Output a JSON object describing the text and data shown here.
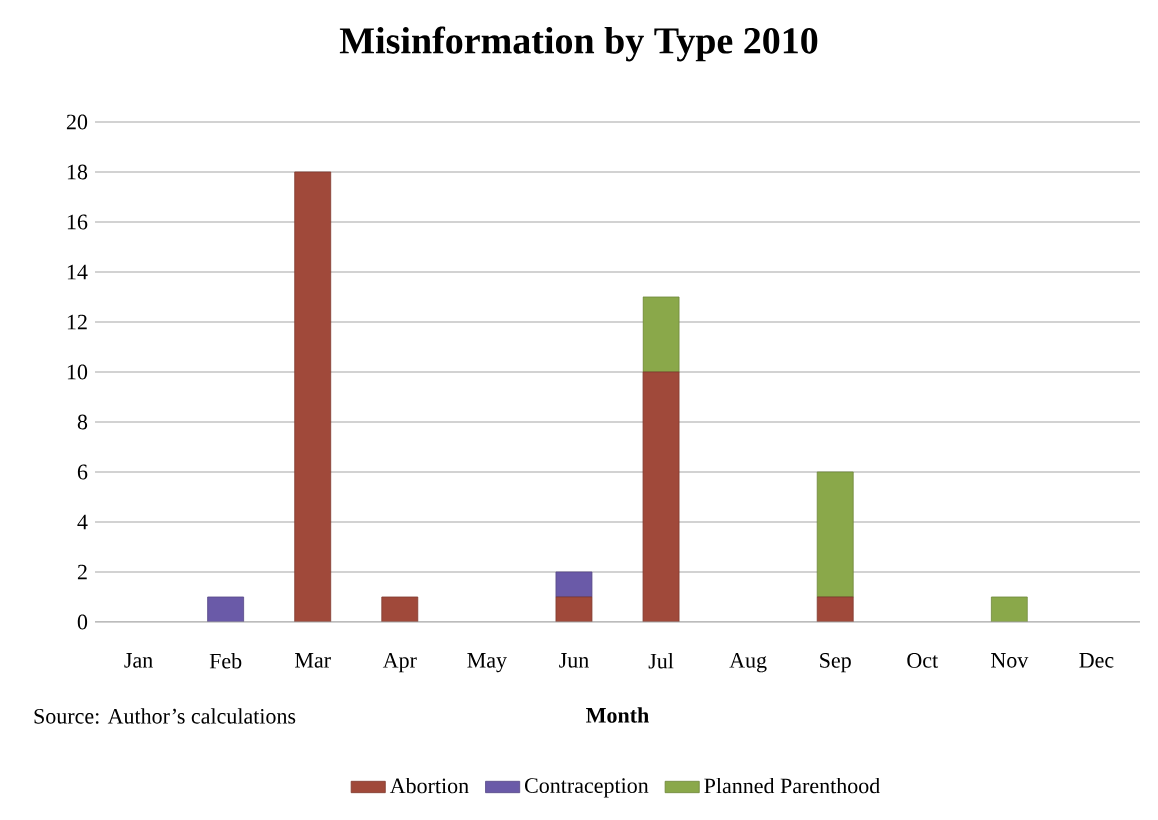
{
  "chart_data": {
    "type": "bar",
    "title": "Misinformation by Type 2010",
    "xlabel": "Month",
    "annotations": [
      "Source: Author’s calculations"
    ],
    "categories": [
      "Jan",
      "Feb",
      "Mar",
      "Apr",
      "May",
      "Jun",
      "Jul",
      "Aug",
      "Sep",
      "Oct",
      "Nov",
      "Dec"
    ],
    "series": [
      {
        "name": "Abortion",
        "color": "#a0493a",
        "values": [
          0,
          0,
          18,
          1,
          0,
          1,
          10,
          0,
          1,
          0,
          0,
          0
        ]
      },
      {
        "name": "Contraception",
        "color": "#6a5aa8",
        "values": [
          0,
          1,
          0,
          0,
          0,
          1,
          0,
          0,
          0,
          0,
          0,
          0
        ]
      },
      {
        "name": "Planned Parenthood",
        "color": "#8aa84a",
        "values": [
          0,
          0,
          0,
          0,
          0,
          0,
          3,
          0,
          5,
          0,
          1,
          0
        ]
      }
    ],
    "stacked": true,
    "ylim": [
      0,
      20
    ],
    "yticks": [
      0,
      2,
      4,
      6,
      8,
      10,
      12,
      14,
      16,
      18,
      20
    ],
    "grid": "y",
    "legend": "bottom"
  }
}
